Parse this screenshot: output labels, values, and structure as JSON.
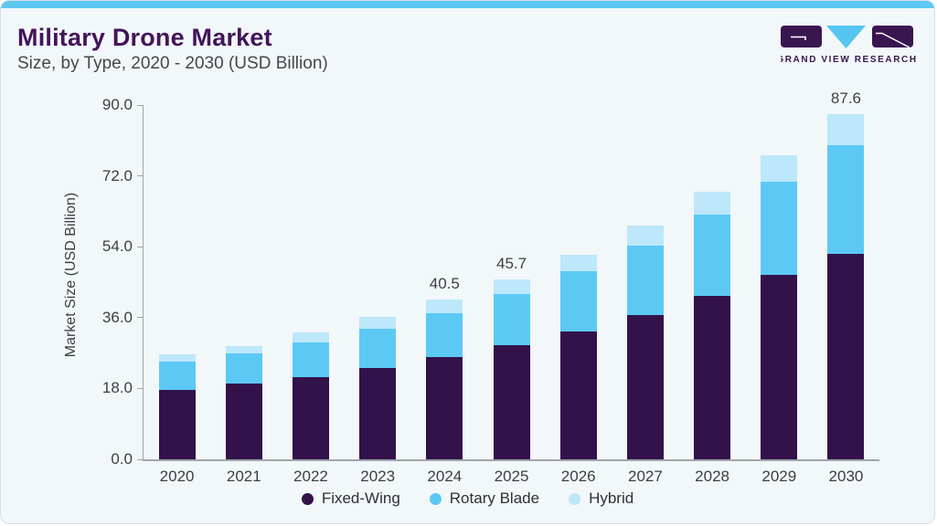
{
  "header": {
    "title": "Military Drone Market",
    "subtitle": "Size, by Type, 2020 - 2030 (USD Billion)"
  },
  "logo": {
    "name": "Grand View Research",
    "text": "GRAND VIEW RESEARCH"
  },
  "colors": {
    "card_background": "#F2F7FA",
    "top_bar": "#5EC8F1",
    "title_text": "#421559",
    "subtitle_text": "#46464E",
    "axis": "#9FA5AA",
    "tick_text": "#3C4043",
    "logo_purple": "#3A1650",
    "logo_blue": "#55C6F2"
  },
  "chart_data": {
    "type": "bar",
    "stacked": true,
    "title": "Military Drone Market Size, by Type, 2020 - 2030 (USD Billion)",
    "xlabel": "",
    "ylabel": "Market Size (USD Billion)",
    "ylim": [
      0,
      90
    ],
    "yticks": [
      0,
      18,
      36,
      54,
      72,
      90
    ],
    "ytick_labels": [
      "0.0",
      "18.0",
      "36.0",
      "54.0",
      "72.0",
      "90.0"
    ],
    "grid": false,
    "legend_position": "bottom",
    "categories": [
      "2020",
      "2021",
      "2022",
      "2023",
      "2024",
      "2025",
      "2026",
      "2027",
      "2028",
      "2029",
      "2030"
    ],
    "series": [
      {
        "name": "Fixed-Wing",
        "color": "#331249",
        "values": [
          17.7,
          19.2,
          21.0,
          23.3,
          26.0,
          28.9,
          32.5,
          36.6,
          41.6,
          46.8,
          52.3
        ]
      },
      {
        "name": "Rotary Blade",
        "color": "#5CC9F5",
        "values": [
          7.2,
          7.6,
          8.8,
          9.9,
          11.2,
          13.2,
          15.2,
          17.8,
          20.5,
          23.8,
          27.6
        ]
      },
      {
        "name": "Hybrid",
        "color": "#BDE7FA",
        "values": [
          1.7,
          1.9,
          2.4,
          2.9,
          3.3,
          3.6,
          4.2,
          4.9,
          5.8,
          6.7,
          7.7
        ]
      }
    ],
    "totals": [
      26.6,
      28.7,
      32.2,
      36.1,
      40.5,
      45.7,
      51.9,
      59.3,
      67.9,
      77.3,
      87.6
    ],
    "bar_labels": [
      null,
      null,
      null,
      null,
      "40.5",
      "45.7",
      null,
      null,
      null,
      null,
      "87.6"
    ]
  }
}
